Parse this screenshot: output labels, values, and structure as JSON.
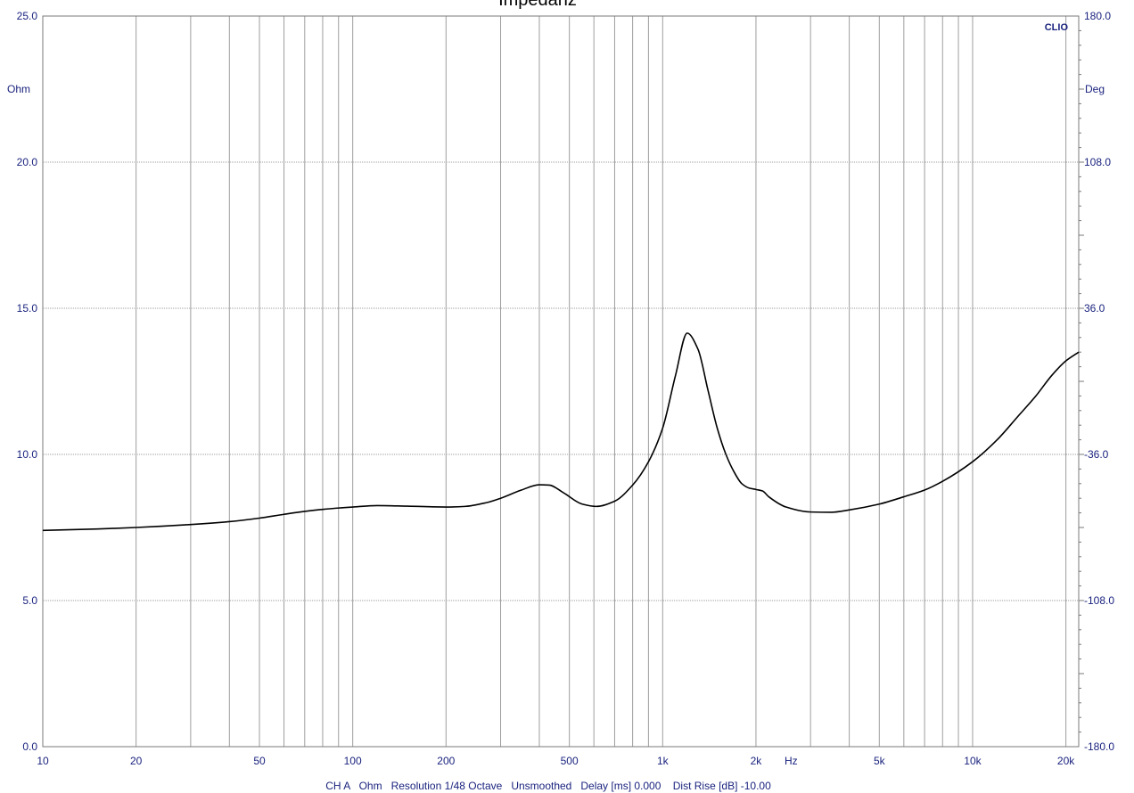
{
  "chart_data": {
    "type": "line",
    "title": "Impedanz",
    "brand": "CLIO",
    "footer": "CH A   Ohm   Resolution 1/48 Octave   Unsmoothed   Delay [ms] 0.000    Dist Rise [dB] -10.00",
    "x_unit": "Hz",
    "x_scale": "log",
    "xlim": [
      10,
      22000
    ],
    "x_ticks": [
      {
        "value": 10,
        "label": "10"
      },
      {
        "value": 20,
        "label": "20"
      },
      {
        "value": 50,
        "label": "50"
      },
      {
        "value": 100,
        "label": "100"
      },
      {
        "value": 200,
        "label": "200"
      },
      {
        "value": 500,
        "label": "500"
      },
      {
        "value": 1000,
        "label": "1k"
      },
      {
        "value": 2000,
        "label": "2k"
      },
      {
        "value": 5000,
        "label": "5k"
      },
      {
        "value": 10000,
        "label": "10k"
      },
      {
        "value": 20000,
        "label": "20k"
      }
    ],
    "y_left": {
      "unit": "Ohm",
      "range": [
        0,
        25
      ],
      "ticks": [
        "0.0",
        "5.0",
        "10.0",
        "15.0",
        "20.0",
        "25.0"
      ]
    },
    "y_right": {
      "unit": "Deg",
      "range": [
        -180,
        180
      ],
      "ticks": [
        "-180.0",
        "-108.0",
        "-36.0",
        "36.0",
        "108.0",
        "180.0"
      ]
    },
    "grid": true,
    "colors": {
      "background": "#ffffff",
      "grid": "#9e9e9e",
      "axis_text": "#1a237e",
      "curve": "#000000"
    },
    "series": [
      {
        "values": [
          [
            10,
            7.4
          ],
          [
            15,
            7.45
          ],
          [
            20,
            7.5
          ],
          [
            30,
            7.6
          ],
          [
            40,
            7.7
          ],
          [
            50,
            7.82
          ],
          [
            60,
            7.95
          ],
          [
            70,
            8.05
          ],
          [
            80,
            8.12
          ],
          [
            100,
            8.2
          ],
          [
            120,
            8.25
          ],
          [
            150,
            8.23
          ],
          [
            200,
            8.2
          ],
          [
            230,
            8.22
          ],
          [
            270,
            8.35
          ],
          [
            300,
            8.5
          ],
          [
            350,
            8.78
          ],
          [
            400,
            8.96
          ],
          [
            430,
            8.95
          ],
          [
            480,
            8.68
          ],
          [
            550,
            8.3
          ],
          [
            610,
            8.22
          ],
          [
            700,
            8.4
          ],
          [
            800,
            8.95
          ],
          [
            900,
            9.75
          ],
          [
            1000,
            10.9
          ],
          [
            1100,
            12.7
          ],
          [
            1200,
            14.15
          ],
          [
            1300,
            13.6
          ],
          [
            1400,
            12.2
          ],
          [
            1500,
            10.9
          ],
          [
            1600,
            10.0
          ],
          [
            1700,
            9.4
          ],
          [
            1800,
            9.0
          ],
          [
            1900,
            8.85
          ],
          [
            2000,
            8.8
          ],
          [
            2100,
            8.75
          ],
          [
            2200,
            8.55
          ],
          [
            2500,
            8.2
          ],
          [
            3000,
            8.03
          ],
          [
            3500,
            8.02
          ],
          [
            4000,
            8.1
          ],
          [
            5000,
            8.3
          ],
          [
            6000,
            8.55
          ],
          [
            7000,
            8.78
          ],
          [
            8000,
            9.08
          ],
          [
            10000,
            9.75
          ],
          [
            12000,
            10.5
          ],
          [
            14000,
            11.3
          ],
          [
            16000,
            12.0
          ],
          [
            18000,
            12.7
          ],
          [
            20000,
            13.2
          ],
          [
            22000,
            13.5
          ]
        ]
      }
    ]
  }
}
